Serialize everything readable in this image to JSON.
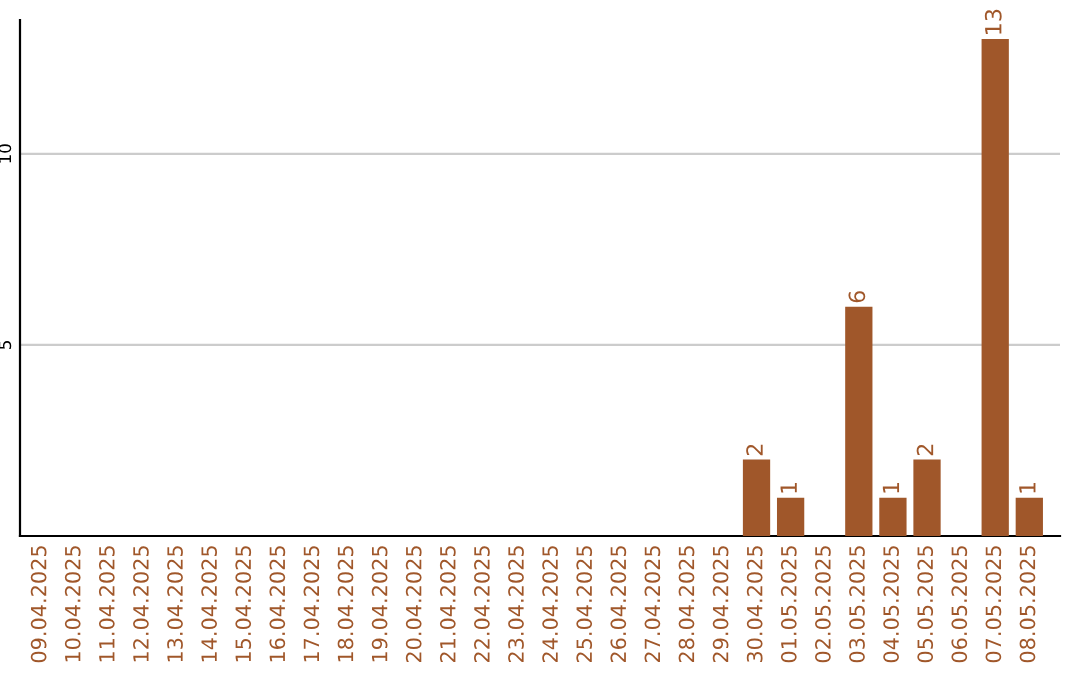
{
  "chart_data": {
    "type": "bar",
    "categories": [
      "09.04.2025",
      "10.04.2025",
      "11.04.2025",
      "12.04.2025",
      "13.04.2025",
      "14.04.2025",
      "15.04.2025",
      "16.04.2025",
      "17.04.2025",
      "18.04.2025",
      "19.04.2025",
      "20.04.2025",
      "21.04.2025",
      "22.04.2025",
      "23.04.2025",
      "24.04.2025",
      "25.04.2025",
      "26.04.2025",
      "27.04.2025",
      "28.04.2025",
      "29.04.2025",
      "30.04.2025",
      "01.05.2025",
      "02.05.2025",
      "03.05.2025",
      "04.05.2025",
      "05.05.2025",
      "06.05.2025",
      "07.05.2025",
      "08.05.2025"
    ],
    "values": [
      0,
      0,
      0,
      0,
      0,
      0,
      0,
      0,
      0,
      0,
      0,
      0,
      0,
      0,
      0,
      0,
      0,
      0,
      0,
      0,
      0,
      2,
      1,
      0,
      6,
      1,
      2,
      0,
      13,
      1
    ],
    "value_labels": [
      null,
      null,
      null,
      null,
      null,
      null,
      null,
      null,
      null,
      null,
      null,
      null,
      null,
      null,
      null,
      null,
      null,
      null,
      null,
      null,
      null,
      "2",
      "1",
      null,
      "6",
      "1",
      "2",
      null,
      "13",
      "1"
    ],
    "color": "#a0572a",
    "ylim": [
      0,
      13.5
    ],
    "yticks": [
      5,
      10
    ],
    "grid": "y",
    "legend": false
  }
}
